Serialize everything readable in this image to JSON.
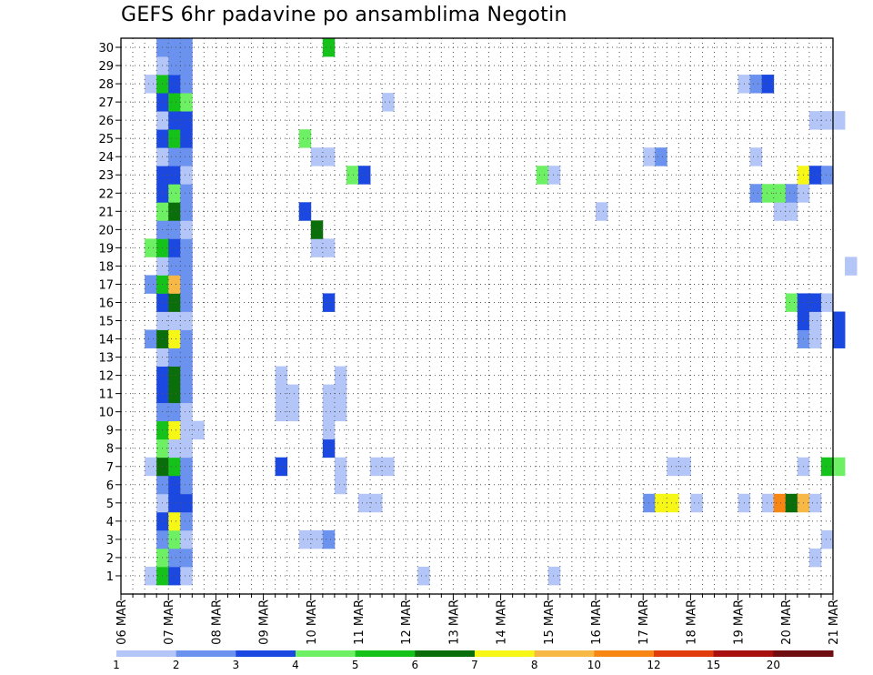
{
  "title": "GEFS 6hr padavine po ansamblima Negotin",
  "chart_data": {
    "type": "heatmap",
    "title": "GEFS 6hr padavine po ansamblima Negotin",
    "xlabel": "",
    "ylabel": "",
    "x_tick_labels": [
      "06 MAR",
      "07 MAR",
      "08 MAR",
      "09 MAR",
      "10 MAR",
      "11 MAR",
      "12 MAR",
      "13 MAR",
      "14 MAR",
      "15 MAR",
      "16 MAR",
      "17 MAR",
      "18 MAR",
      "19 MAR",
      "20 MAR",
      "21 MAR"
    ],
    "y_tick_labels": [
      "1",
      "2",
      "3",
      "4",
      "5",
      "6",
      "7",
      "8",
      "9",
      "10",
      "11",
      "12",
      "13",
      "14",
      "15",
      "16",
      "17",
      "18",
      "19",
      "20",
      "21",
      "22",
      "23",
      "24",
      "25",
      "26",
      "27",
      "28",
      "29",
      "30"
    ],
    "ylim": [
      1,
      30
    ],
    "x_step_hours": 6,
    "grid": true,
    "legend_position": "bottom",
    "legend": {
      "labels": [
        "1",
        "2",
        "3",
        "4",
        "5",
        "6",
        "7",
        "8",
        "10",
        "12",
        "15",
        "20"
      ],
      "colors": [
        "#b3c6f7",
        "#6a92ee",
        "#1b48e0",
        "#6ef064",
        "#15c21a",
        "#0a6e0a",
        "#f7f717",
        "#f8b845",
        "#f88612",
        "#e03c0c",
        "#a81010",
        "#700d10"
      ]
    },
    "cells": [
      [
        1,
        2,
        1
      ],
      [
        1,
        3,
        5
      ],
      [
        1,
        4,
        3
      ],
      [
        1,
        5,
        1
      ],
      [
        1,
        25,
        1
      ],
      [
        1,
        36,
        1
      ],
      [
        2,
        3,
        4
      ],
      [
        2,
        4,
        2
      ],
      [
        2,
        5,
        2
      ],
      [
        2,
        58,
        1
      ],
      [
        3,
        3,
        2
      ],
      [
        3,
        4,
        4
      ],
      [
        3,
        5,
        1
      ],
      [
        3,
        15,
        1
      ],
      [
        3,
        16,
        1
      ],
      [
        3,
        17,
        2
      ],
      [
        3,
        59,
        1
      ],
      [
        4,
        3,
        3
      ],
      [
        4,
        4,
        7
      ],
      [
        4,
        5,
        2
      ],
      [
        5,
        3,
        1
      ],
      [
        5,
        4,
        3
      ],
      [
        5,
        5,
        3
      ],
      [
        5,
        20,
        1
      ],
      [
        5,
        21,
        1
      ],
      [
        5,
        44,
        2
      ],
      [
        5,
        45,
        7
      ],
      [
        5,
        46,
        7
      ],
      [
        5,
        48,
        1
      ],
      [
        5,
        52,
        1
      ],
      [
        5,
        54,
        1
      ],
      [
        5,
        55,
        9
      ],
      [
        5,
        56,
        6
      ],
      [
        5,
        57,
        8
      ],
      [
        5,
        58,
        1
      ],
      [
        6,
        3,
        2
      ],
      [
        6,
        4,
        3
      ],
      [
        6,
        5,
        2
      ],
      [
        6,
        18,
        1
      ],
      [
        7,
        2,
        1
      ],
      [
        7,
        3,
        6
      ],
      [
        7,
        4,
        5
      ],
      [
        7,
        5,
        2
      ],
      [
        7,
        13,
        3
      ],
      [
        7,
        18,
        1
      ],
      [
        7,
        21,
        1
      ],
      [
        7,
        22,
        1
      ],
      [
        7,
        46,
        1
      ],
      [
        7,
        47,
        1
      ],
      [
        7,
        57,
        1
      ],
      [
        7,
        59,
        5
      ],
      [
        7,
        60,
        4
      ],
      [
        8,
        3,
        4
      ],
      [
        8,
        4,
        1
      ],
      [
        8,
        5,
        1
      ],
      [
        8,
        17,
        3
      ],
      [
        9,
        3,
        5
      ],
      [
        9,
        4,
        7
      ],
      [
        9,
        5,
        1
      ],
      [
        9,
        6,
        1
      ],
      [
        9,
        17,
        1
      ],
      [
        10,
        3,
        2
      ],
      [
        10,
        4,
        2
      ],
      [
        10,
        5,
        1
      ],
      [
        10,
        13,
        1
      ],
      [
        10,
        14,
        1
      ],
      [
        10,
        17,
        1
      ],
      [
        10,
        18,
        1
      ],
      [
        11,
        3,
        3
      ],
      [
        11,
        4,
        6
      ],
      [
        11,
        5,
        2
      ],
      [
        11,
        13,
        1
      ],
      [
        11,
        14,
        1
      ],
      [
        11,
        17,
        1
      ],
      [
        11,
        18,
        1
      ],
      [
        12,
        3,
        3
      ],
      [
        12,
        4,
        6
      ],
      [
        12,
        5,
        2
      ],
      [
        12,
        13,
        1
      ],
      [
        12,
        18,
        1
      ],
      [
        13,
        3,
        1
      ],
      [
        13,
        4,
        2
      ],
      [
        13,
        5,
        2
      ],
      [
        14,
        2,
        2
      ],
      [
        14,
        3,
        6
      ],
      [
        14,
        4,
        7
      ],
      [
        14,
        5,
        2
      ],
      [
        14,
        57,
        2
      ],
      [
        14,
        58,
        1
      ],
      [
        14,
        60,
        3
      ],
      [
        15,
        3,
        1
      ],
      [
        15,
        4,
        1
      ],
      [
        15,
        5,
        1
      ],
      [
        15,
        57,
        3
      ],
      [
        15,
        58,
        1
      ],
      [
        15,
        60,
        3
      ],
      [
        16,
        3,
        3
      ],
      [
        16,
        4,
        6
      ],
      [
        16,
        5,
        2
      ],
      [
        16,
        17,
        3
      ],
      [
        16,
        56,
        4
      ],
      [
        16,
        57,
        3
      ],
      [
        16,
        58,
        3
      ],
      [
        16,
        59,
        1
      ],
      [
        17,
        2,
        2
      ],
      [
        17,
        3,
        5
      ],
      [
        17,
        4,
        8
      ],
      [
        17,
        5,
        2
      ],
      [
        18,
        3,
        1
      ],
      [
        18,
        4,
        2
      ],
      [
        18,
        5,
        2
      ],
      [
        18,
        61,
        1
      ],
      [
        19,
        2,
        4
      ],
      [
        19,
        3,
        5
      ],
      [
        19,
        4,
        3
      ],
      [
        19,
        5,
        2
      ],
      [
        19,
        16,
        1
      ],
      [
        19,
        17,
        1
      ],
      [
        20,
        3,
        2
      ],
      [
        20,
        4,
        2
      ],
      [
        20,
        5,
        1
      ],
      [
        20,
        16,
        6
      ],
      [
        21,
        3,
        4
      ],
      [
        21,
        4,
        6
      ],
      [
        21,
        5,
        2
      ],
      [
        21,
        15,
        3
      ],
      [
        21,
        40,
        1
      ],
      [
        21,
        55,
        1
      ],
      [
        21,
        56,
        1
      ],
      [
        22,
        3,
        3
      ],
      [
        22,
        4,
        4
      ],
      [
        22,
        5,
        2
      ],
      [
        22,
        53,
        2
      ],
      [
        22,
        54,
        4
      ],
      [
        22,
        55,
        4
      ],
      [
        22,
        56,
        2
      ],
      [
        22,
        57,
        1
      ],
      [
        23,
        3,
        3
      ],
      [
        23,
        4,
        3
      ],
      [
        23,
        5,
        1
      ],
      [
        23,
        19,
        4
      ],
      [
        23,
        20,
        3
      ],
      [
        23,
        35,
        4
      ],
      [
        23,
        36,
        1
      ],
      [
        23,
        57,
        7
      ],
      [
        23,
        58,
        3
      ],
      [
        23,
        59,
        2
      ],
      [
        24,
        3,
        1
      ],
      [
        24,
        4,
        2
      ],
      [
        24,
        5,
        2
      ],
      [
        24,
        16,
        1
      ],
      [
        24,
        17,
        1
      ],
      [
        24,
        44,
        1
      ],
      [
        24,
        45,
        2
      ],
      [
        24,
        53,
        1
      ],
      [
        25,
        3,
        3
      ],
      [
        25,
        4,
        5
      ],
      [
        25,
        5,
        3
      ],
      [
        25,
        15,
        4
      ],
      [
        26,
        3,
        1
      ],
      [
        26,
        4,
        3
      ],
      [
        26,
        5,
        3
      ],
      [
        26,
        58,
        1
      ],
      [
        26,
        59,
        1
      ],
      [
        26,
        60,
        1
      ],
      [
        27,
        3,
        3
      ],
      [
        27,
        4,
        5
      ],
      [
        27,
        5,
        4
      ],
      [
        27,
        22,
        1
      ],
      [
        28,
        2,
        1
      ],
      [
        28,
        3,
        5
      ],
      [
        28,
        4,
        3
      ],
      [
        28,
        5,
        2
      ],
      [
        28,
        52,
        1
      ],
      [
        28,
        53,
        2
      ],
      [
        28,
        54,
        3
      ],
      [
        29,
        3,
        1
      ],
      [
        29,
        4,
        2
      ],
      [
        29,
        5,
        2
      ],
      [
        30,
        3,
        2
      ],
      [
        30,
        4,
        2
      ],
      [
        30,
        5,
        2
      ],
      [
        30,
        17,
        5
      ]
    ]
  }
}
